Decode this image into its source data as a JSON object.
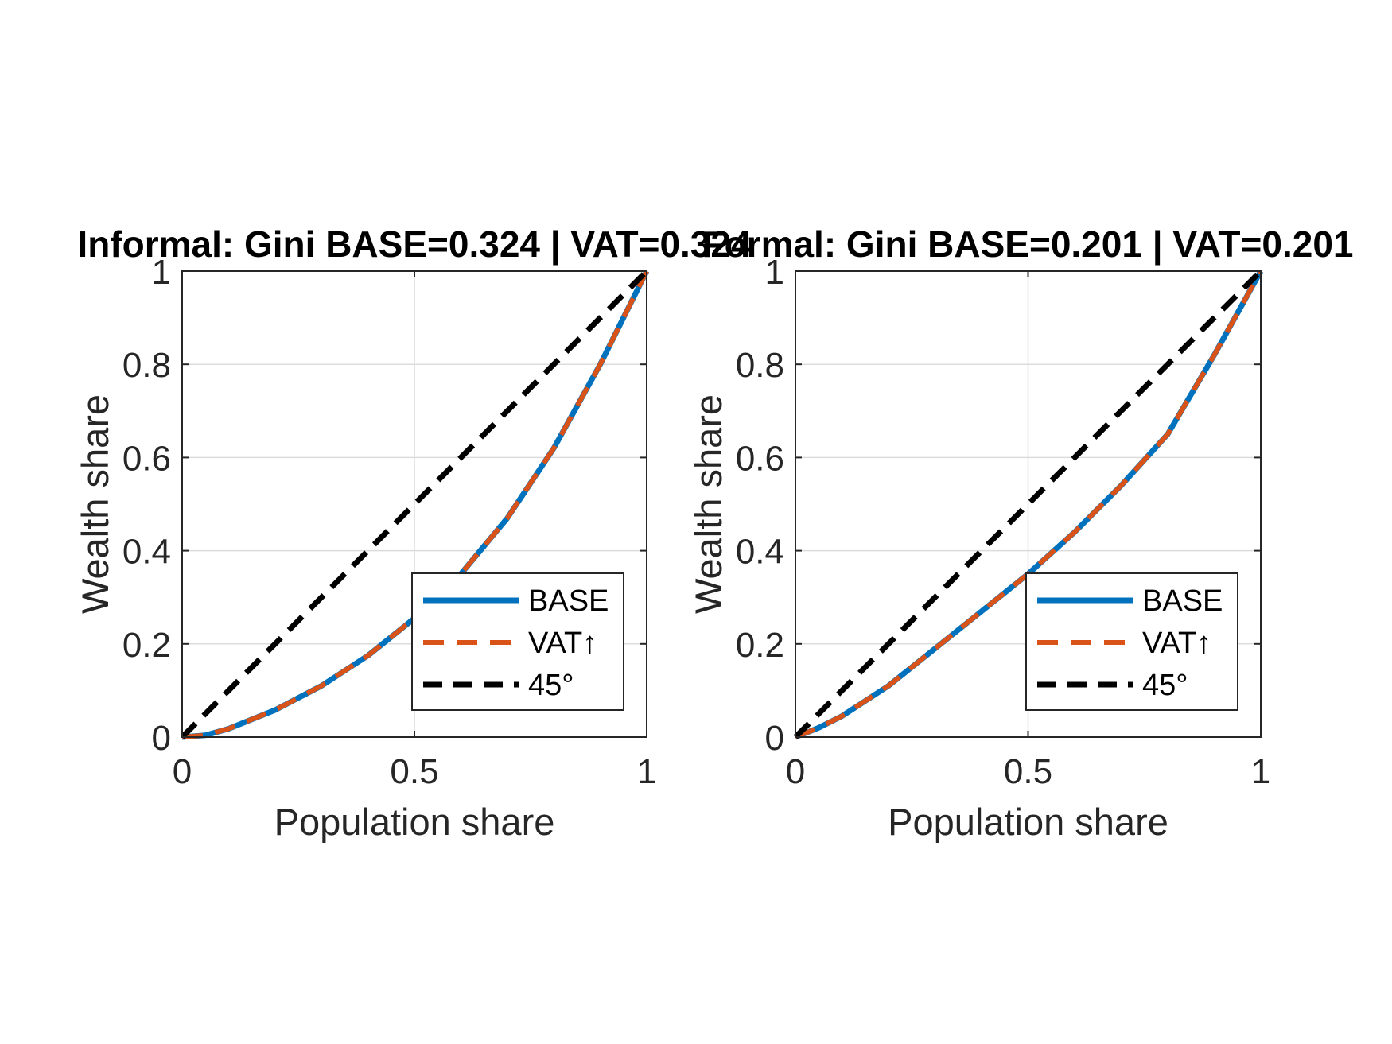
{
  "chart_data": [
    {
      "type": "line",
      "title": "Informal: Gini BASE=0.324 | VAT=0.324",
      "xlabel": "Population share",
      "ylabel": "Wealth share",
      "xlim": [
        0,
        1
      ],
      "ylim": [
        0,
        1
      ],
      "xticks": [
        "0",
        "0.5",
        "1"
      ],
      "yticks": [
        "0",
        "0.2",
        "0.4",
        "0.6",
        "0.8",
        "1"
      ],
      "grid": true,
      "legend_position": "bottom-right",
      "x": [
        0,
        0.05,
        0.1,
        0.2,
        0.3,
        0.4,
        0.5,
        0.6,
        0.7,
        0.8,
        0.9,
        0.95,
        1.0
      ],
      "series": [
        {
          "name": "BASE",
          "color": "#0072BD",
          "style": "solid",
          "values": [
            0,
            0.004,
            0.018,
            0.058,
            0.11,
            0.175,
            0.255,
            0.35,
            0.47,
            0.62,
            0.8,
            0.9,
            1.0
          ]
        },
        {
          "name": "VAT↑",
          "color": "#D95319",
          "style": "dashed",
          "values": [
            0,
            0.004,
            0.018,
            0.058,
            0.11,
            0.175,
            0.255,
            0.35,
            0.47,
            0.62,
            0.8,
            0.9,
            1.0
          ]
        },
        {
          "name": "45°",
          "color": "#000000",
          "style": "dashed",
          "values": [
            0,
            0.05,
            0.1,
            0.2,
            0.3,
            0.4,
            0.5,
            0.6,
            0.7,
            0.8,
            0.9,
            0.95,
            1.0
          ]
        }
      ]
    },
    {
      "type": "line",
      "title": "Formal: Gini BASE=0.201 | VAT=0.201",
      "xlabel": "Population share",
      "ylabel": "Wealth share",
      "xlim": [
        0,
        1
      ],
      "ylim": [
        0,
        1
      ],
      "xticks": [
        "0",
        "0.5",
        "1"
      ],
      "yticks": [
        "0",
        "0.2",
        "0.4",
        "0.6",
        "0.8",
        "1"
      ],
      "grid": true,
      "legend_position": "bottom-right",
      "x": [
        0,
        0.05,
        0.1,
        0.2,
        0.3,
        0.4,
        0.5,
        0.6,
        0.7,
        0.8,
        0.9,
        0.95,
        1.0
      ],
      "series": [
        {
          "name": "BASE",
          "color": "#0072BD",
          "style": "solid",
          "values": [
            0,
            0.02,
            0.045,
            0.11,
            0.19,
            0.27,
            0.35,
            0.44,
            0.54,
            0.65,
            0.82,
            0.91,
            1.0
          ]
        },
        {
          "name": "VAT↑",
          "color": "#D95319",
          "style": "dashed",
          "values": [
            0,
            0.02,
            0.045,
            0.11,
            0.19,
            0.27,
            0.35,
            0.44,
            0.54,
            0.65,
            0.82,
            0.91,
            1.0
          ]
        },
        {
          "name": "45°",
          "color": "#000000",
          "style": "dashed",
          "values": [
            0,
            0.05,
            0.1,
            0.2,
            0.3,
            0.4,
            0.5,
            0.6,
            0.7,
            0.8,
            0.9,
            0.95,
            1.0
          ]
        }
      ]
    }
  ]
}
